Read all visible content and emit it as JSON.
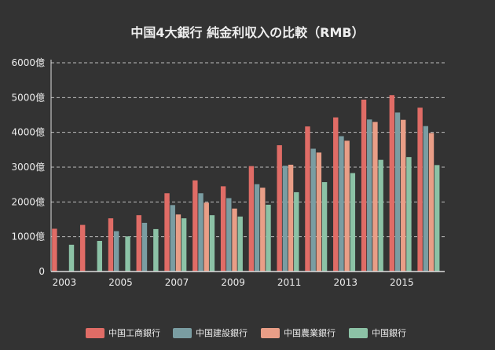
{
  "chart_data": {
    "type": "bar",
    "title": "中国4大銀行 純金利収入の比較（RMB）",
    "xlabel": "",
    "ylabel": "",
    "categories": [
      "2003",
      "2004",
      "2005",
      "2006",
      "2007",
      "2008",
      "2009",
      "2010",
      "2011",
      "2012",
      "2013",
      "2014",
      "2015",
      "2016"
    ],
    "x_tick_labels": [
      "2003",
      "2005",
      "2007",
      "2009",
      "2011",
      "2013",
      "2015"
    ],
    "y_ticks": [
      0,
      1000,
      2000,
      3000,
      4000,
      5000,
      6000
    ],
    "y_tick_labels": [
      "0",
      "1000億",
      "2000億",
      "3000億",
      "4000億",
      "5000億",
      "6000億"
    ],
    "ylim": [
      0,
      6000
    ],
    "grid": "horizontal-dashed",
    "legend_position": "bottom",
    "series": [
      {
        "name": "中国工商銀行",
        "color": "#E06C66",
        "values": [
          1230,
          1340,
          1530,
          1620,
          2250,
          2620,
          2450,
          3030,
          3630,
          4170,
          4430,
          4940,
          5070,
          4710
        ]
      },
      {
        "name": "中国建設銀行",
        "color": "#7A9DA2",
        "values": [
          null,
          null,
          1160,
          1400,
          1910,
          2250,
          2110,
          2510,
          3040,
          3530,
          3890,
          4370,
          4570,
          4180
        ]
      },
      {
        "name": "中国農業銀行",
        "color": "#E99E87",
        "values": [
          null,
          null,
          null,
          null,
          1640,
          1980,
          1810,
          2410,
          3070,
          3420,
          3760,
          4300,
          4360,
          3980
        ]
      },
      {
        "name": "中国銀行",
        "color": "#8CC2A6",
        "values": [
          770,
          880,
          1010,
          1220,
          1530,
          1620,
          1580,
          1920,
          2280,
          2570,
          2830,
          3210,
          3290,
          3060
        ]
      }
    ]
  }
}
